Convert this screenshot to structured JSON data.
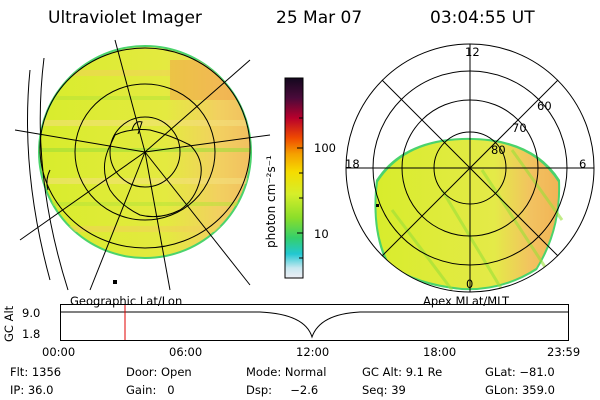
{
  "header": {
    "instrument": "Ultraviolet Imager",
    "date": "25 Mar 07",
    "time": "03:04:55 UT"
  },
  "colorbar": {
    "unit_label": "photon cm⁻²s⁻¹",
    "ticks": [
      "100",
      "10"
    ],
    "colors": [
      "#1a0a2a",
      "#3a0a40",
      "#7a0030",
      "#c0002a",
      "#e84a00",
      "#f5a300",
      "#f5d800",
      "#d6ef2a",
      "#9ae02a",
      "#3cd26a",
      "#22c9d0",
      "#bfe8f0",
      "#e8e8f0"
    ]
  },
  "geo_map": {
    "label": "Geographic Lat/Lon"
  },
  "polar_map": {
    "label": "Apex MLat/MLT",
    "mlt_labels": [
      "12",
      "18",
      "6",
      "0"
    ],
    "lat_labels": [
      "60",
      "70",
      "80"
    ]
  },
  "alt_plot": {
    "ylabel": "GC Alt",
    "yticks": [
      "9.0",
      "1.8"
    ],
    "xticks": [
      "00:00",
      "06:00",
      "12:00",
      "18:00",
      "23:59"
    ],
    "marker_time": "03:04:55",
    "marker_color": "#e00000"
  },
  "info": {
    "flt": "Flt: 1356",
    "ip": "IP: 36.0",
    "door": "Door: Open",
    "gain": "Gain:   0",
    "mode": "Mode: Normal",
    "dsp": "Dsp:     −2.6",
    "gc_alt": "GC Alt: 9.1 Re",
    "seq": "Seq: 39",
    "glat": "GLat: −81.0",
    "glon": "GLon: 359.0"
  }
}
